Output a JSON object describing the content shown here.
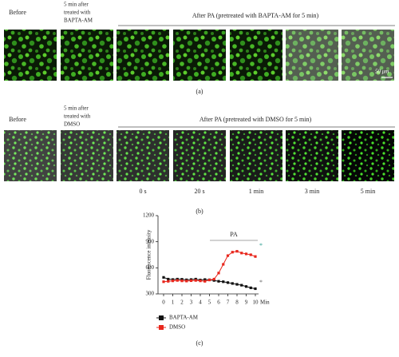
{
  "panel_a": {
    "before": "Before",
    "pretreat": [
      "5 min after",
      "treated with",
      "BAPTA-AM"
    ],
    "after": "After PA (pretreated with BAPTA-AM for 5 min)",
    "scale": "50 μm",
    "caption": "(a)"
  },
  "panel_b": {
    "before": "Before",
    "pretreat": [
      "5 min after",
      "treated with",
      "DMSO"
    ],
    "after": "After PA (pretreated with DMSO for 5 min)",
    "times": [
      "0 s",
      "20 s",
      "1 min",
      "3 min",
      "5 min"
    ],
    "caption": "(b)"
  },
  "chart_data": {
    "type": "line",
    "y_label": "Fluorescence intensity",
    "x_unit": "Min",
    "annotation": "PA",
    "markers": [
      "*",
      "*"
    ],
    "caption": "(c)",
    "x": [
      0,
      0.5,
      1,
      1.5,
      2,
      2.5,
      3,
      3.5,
      4,
      4.5,
      5,
      5.5,
      6,
      6.5,
      7,
      7.5,
      8,
      8.5,
      9,
      9.5,
      10
    ],
    "series": [
      {
        "name": "BAPTA-AM",
        "color": "#111111",
        "values": [
          490,
          470,
          465,
          470,
          468,
          462,
          465,
          470,
          460,
          465,
          462,
          455,
          445,
          440,
          430,
          420,
          410,
          400,
          385,
          370,
          360
        ]
      },
      {
        "name": "DMSO",
        "color": "#e8261c",
        "values": [
          440,
          445,
          450,
          455,
          450,
          448,
          452,
          455,
          450,
          445,
          460,
          470,
          540,
          640,
          740,
          780,
          790,
          770,
          760,
          750,
          730
        ]
      }
    ],
    "xlim": [
      0,
      10
    ],
    "xticks": [
      0,
      1,
      2,
      3,
      4,
      5,
      6,
      7,
      8,
      9,
      10
    ],
    "ylim": [
      300,
      1200
    ],
    "yticks": [
      300,
      600,
      900,
      1200
    ]
  }
}
